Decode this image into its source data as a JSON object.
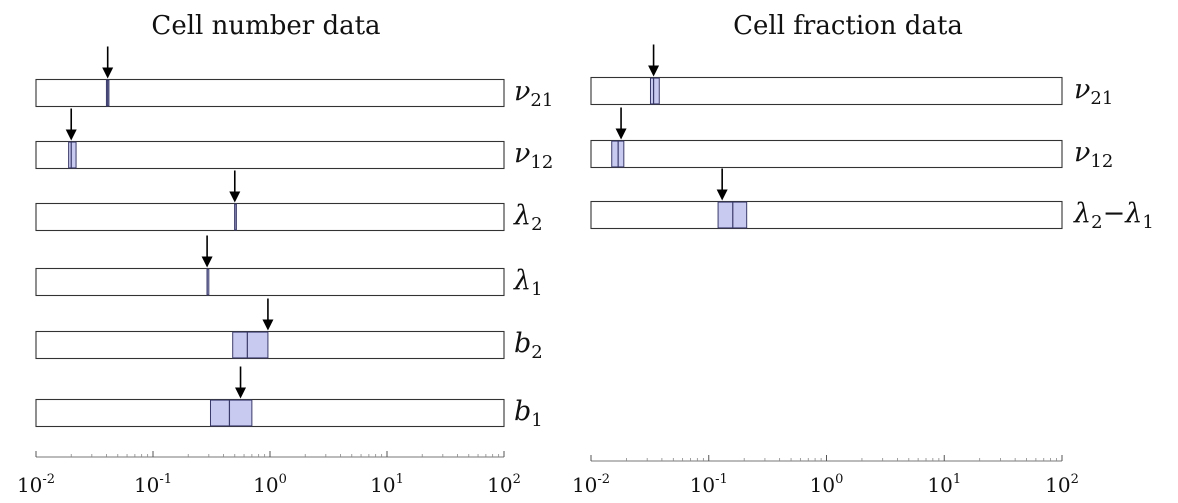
{
  "chart_data": [
    {
      "type": "interval",
      "title": "Cell number data",
      "xscale": "log",
      "xlim": [
        0.01,
        100
      ],
      "x_ticks": [
        {
          "base": "10",
          "exp": "-2"
        },
        {
          "base": "10",
          "exp": "-1"
        },
        {
          "base": "10",
          "exp": "0"
        },
        {
          "base": "10",
          "exp": "1"
        },
        {
          "base": "10",
          "exp": "2"
        }
      ],
      "rows": [
        {
          "symbol": "ν",
          "sub": "21",
          "low": 0.04,
          "median": 0.041,
          "high": 0.042,
          "true_value": 0.041
        },
        {
          "symbol": "ν",
          "sub": "12",
          "low": 0.019,
          "median": 0.02,
          "high": 0.022,
          "true_value": 0.02
        },
        {
          "symbol": "λ",
          "sub": "2",
          "low": 0.5,
          "median": 0.5,
          "high": 0.51,
          "true_value": 0.5
        },
        {
          "symbol": "λ",
          "sub": "1",
          "low": 0.29,
          "median": 0.29,
          "high": 0.3,
          "true_value": 0.29
        },
        {
          "symbol": "b",
          "sub": "2",
          "low": 0.48,
          "median": 0.64,
          "high": 0.96,
          "true_value": 0.96
        },
        {
          "symbol": "b",
          "sub": "1",
          "low": 0.31,
          "median": 0.45,
          "high": 0.7,
          "true_value": 0.56
        }
      ]
    },
    {
      "type": "interval",
      "title": "Cell fraction data",
      "xscale": "log",
      "xlim": [
        0.01,
        100
      ],
      "x_ticks": [
        {
          "base": "10",
          "exp": "-2"
        },
        {
          "base": "10",
          "exp": "-1"
        },
        {
          "base": "10",
          "exp": "0"
        },
        {
          "base": "10",
          "exp": "1"
        },
        {
          "base": "10",
          "exp": "2"
        }
      ],
      "rows": [
        {
          "symbol": "ν",
          "sub": "21",
          "low": 0.032,
          "median": 0.034,
          "high": 0.038,
          "true_value": 0.034
        },
        {
          "symbol": "ν",
          "sub": "12",
          "low": 0.015,
          "median": 0.017,
          "high": 0.019,
          "true_value": 0.018
        },
        {
          "symbol": "λ",
          "sub": "2",
          "symbol2": "λ",
          "sub2": "1",
          "low": 0.12,
          "median": 0.16,
          "high": 0.21,
          "true_value": 0.13
        }
      ]
    }
  ],
  "colors": {
    "interval_fill": "#c9caf0",
    "interval_line": "#3a3a6a",
    "box_stroke": "#333333",
    "arrow": "#000000"
  }
}
